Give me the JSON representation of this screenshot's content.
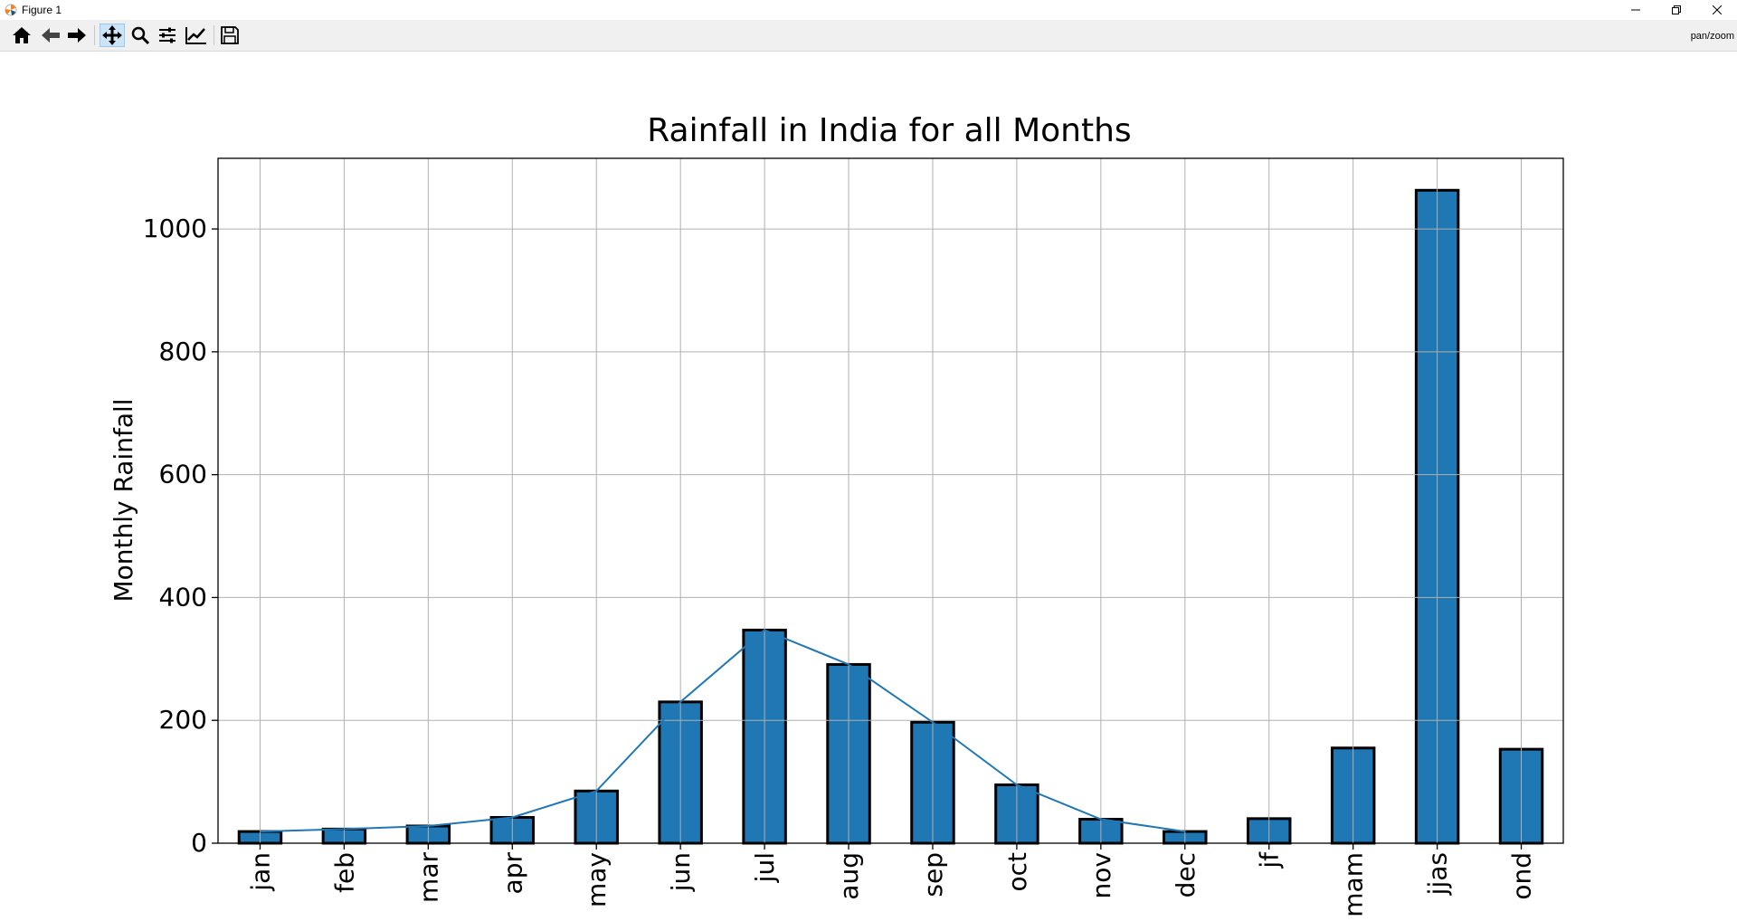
{
  "window": {
    "title": "Figure 1",
    "app_icon": "matplotlib-logo-icon",
    "controls": [
      "minimize-icon",
      "restore-icon",
      "close-icon"
    ]
  },
  "toolbar": {
    "buttons": [
      {
        "name": "home-icon",
        "active": false
      },
      {
        "name": "back-arrow-icon",
        "active": false
      },
      {
        "name": "forward-arrow-icon",
        "active": false
      },
      {
        "name": "pan-move-icon",
        "active": true
      },
      {
        "name": "zoom-magnifier-icon",
        "active": false
      },
      {
        "name": "configure-subplots-icon",
        "active": false
      },
      {
        "name": "edit-axis-curve-icon",
        "active": false
      },
      {
        "name": "save-floppy-icon",
        "active": false
      }
    ],
    "mode_label": "pan/zoom"
  },
  "chart_data": {
    "type": "bar",
    "title": "Rainfall in India for all Months",
    "xlabel": "",
    "ylabel": "Monthly Rainfall",
    "categories": [
      "jan",
      "feb",
      "mar",
      "apr",
      "may",
      "jun",
      "jul",
      "aug",
      "sep",
      "oct",
      "nov",
      "dec",
      "jf",
      "mam",
      "jjas",
      "ond"
    ],
    "values": [
      19,
      23,
      28,
      42,
      85,
      230,
      347,
      291,
      197,
      95,
      39,
      19,
      40,
      155,
      1063,
      153
    ],
    "line_overlay": {
      "categories": [
        "jan",
        "feb",
        "mar",
        "apr",
        "may",
        "jun",
        "jul",
        "aug",
        "sep",
        "oct",
        "nov",
        "dec"
      ],
      "values": [
        19,
        23,
        28,
        42,
        85,
        230,
        347,
        291,
        197,
        95,
        39,
        19
      ]
    },
    "ylim": [
      0,
      1115
    ],
    "yticks": [
      0,
      200,
      400,
      600,
      800,
      1000
    ],
    "grid": true,
    "bar_color": "#1f77b4",
    "bar_edge_color": "#000000",
    "line_color": "#1f77b4"
  }
}
